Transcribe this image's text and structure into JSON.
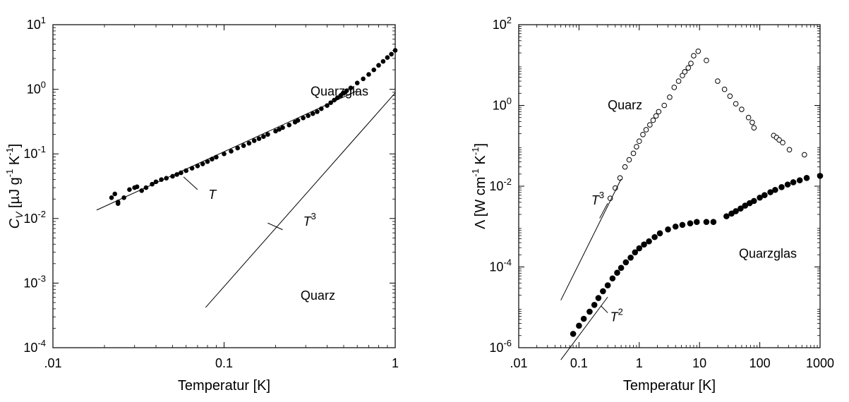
{
  "chart_data": [
    {
      "type": "scatter",
      "xscale": "log",
      "yscale": "log",
      "xlim": [
        0.01,
        1
      ],
      "ylim": [
        0.0001,
        10
      ],
      "xlabel": "Temperatur [K]",
      "ylabel": "C_V [µJ g^-1 K^-1]",
      "xticks": [
        {
          "v": 0.01,
          "t": ".01"
        },
        {
          "v": 0.1,
          "t": "0.1"
        },
        {
          "v": 1,
          "t": "1"
        }
      ],
      "yticks": [
        {
          "v": 0.0001,
          "b": "10",
          "e": "-4"
        },
        {
          "v": 0.001,
          "b": "10",
          "e": "-3"
        },
        {
          "v": 0.01,
          "b": "10",
          "e": "-2"
        },
        {
          "v": 0.1,
          "b": "10",
          "e": "-1"
        },
        {
          "v": 1,
          "b": "10",
          "e": "0"
        },
        {
          "v": 10,
          "b": "10",
          "e": "1"
        }
      ],
      "series": [
        {
          "name": "Quarzglas",
          "marker": "filled",
          "x": [
            0.022,
            0.023,
            0.024,
            0.024,
            0.026,
            0.028,
            0.03,
            0.031,
            0.033,
            0.035,
            0.038,
            0.04,
            0.043,
            0.046,
            0.05,
            0.053,
            0.056,
            0.06,
            0.065,
            0.07,
            0.075,
            0.08,
            0.085,
            0.09,
            0.1,
            0.11,
            0.12,
            0.13,
            0.14,
            0.15,
            0.16,
            0.17,
            0.18,
            0.2,
            0.21,
            0.22,
            0.24,
            0.26,
            0.27,
            0.29,
            0.31,
            0.33,
            0.35,
            0.37,
            0.4,
            0.42,
            0.44,
            0.46,
            0.48,
            0.5,
            0.52,
            0.55,
            0.6,
            0.65,
            0.7,
            0.75,
            0.8,
            0.85,
            0.9,
            0.95,
            1.0
          ],
          "y": [
            0.021,
            0.024,
            0.018,
            0.017,
            0.021,
            0.028,
            0.03,
            0.031,
            0.027,
            0.03,
            0.034,
            0.037,
            0.04,
            0.042,
            0.045,
            0.048,
            0.051,
            0.055,
            0.06,
            0.065,
            0.07,
            0.076,
            0.083,
            0.089,
            0.1,
            0.11,
            0.123,
            0.134,
            0.146,
            0.16,
            0.172,
            0.185,
            0.2,
            0.225,
            0.24,
            0.255,
            0.28,
            0.31,
            0.33,
            0.36,
            0.39,
            0.42,
            0.45,
            0.5,
            0.56,
            0.62,
            0.68,
            0.74,
            0.8,
            0.87,
            0.95,
            1.05,
            1.25,
            1.45,
            1.7,
            2.0,
            2.35,
            2.7,
            3.1,
            3.5,
            4.0
          ]
        },
        {
          "name": "",
          "marker": "line",
          "x": [
            0.018,
            0.6
          ],
          "y": [
            0.0135,
            0.95
          ]
        },
        {
          "name": "",
          "marker": "line",
          "x": [
            0.078,
            1.0
          ],
          "y": [
            0.00042,
            0.88
          ]
        }
      ],
      "annotations": [
        {
          "text": "Quarzglas",
          "x": 0.32,
          "y": 0.8
        },
        {
          "text": "Quarz",
          "x": 0.28,
          "y": 0.00055
        },
        {
          "text": "T",
          "x": 0.081,
          "y": 0.02
        },
        {
          "text": "T",
          "sup": "3",
          "x": 0.29,
          "y": 0.0077
        }
      ],
      "leaders": [
        {
          "x": [
            0.058,
            0.07
          ],
          "y": [
            0.044,
            0.028
          ]
        },
        {
          "x": [
            0.18,
            0.22
          ],
          "y": [
            0.0085,
            0.0067
          ]
        }
      ]
    },
    {
      "type": "scatter",
      "xscale": "log",
      "yscale": "log",
      "xlim": [
        0.01,
        1000
      ],
      "ylim": [
        1e-06,
        100
      ],
      "xlabel": "Temperatur [K]",
      "ylabel": "Λ [W cm^-1 K^-1]",
      "xticks": [
        {
          "v": 0.01,
          "t": ".01"
        },
        {
          "v": 0.1,
          "t": "0.1"
        },
        {
          "v": 1,
          "t": "1"
        },
        {
          "v": 10,
          "t": "10"
        },
        {
          "v": 100,
          "t": "100"
        },
        {
          "v": 1000,
          "t": "1000"
        }
      ],
      "yticks": [
        {
          "v": 1e-06,
          "b": "10",
          "e": "-6"
        },
        {
          "v": 0.0001,
          "b": "10",
          "e": "-4"
        },
        {
          "v": 0.01,
          "b": "10",
          "e": "-2"
        },
        {
          "v": 1,
          "b": "10",
          "e": "0"
        },
        {
          "v": 100,
          "b": "10",
          "e": "2"
        }
      ],
      "series": [
        {
          "name": "Quarz",
          "marker": "open",
          "x": [
            0.33,
            0.4,
            0.48,
            0.58,
            0.68,
            0.8,
            0.9,
            1.0,
            1.15,
            1.3,
            1.5,
            1.7,
            1.9,
            2.1,
            2.6,
            3.2,
            3.8,
            4.5,
            5.2,
            5.7,
            6.5,
            7.2,
            8.0,
            9.5,
            13,
            20,
            26,
            32,
            40,
            50,
            65,
            75,
            80,
            170,
            190,
            210,
            240,
            310,
            550
          ],
          "y": [
            0.005,
            0.009,
            0.016,
            0.03,
            0.045,
            0.065,
            0.095,
            0.13,
            0.19,
            0.25,
            0.33,
            0.43,
            0.55,
            0.7,
            1.0,
            1.6,
            2.8,
            4.0,
            5.5,
            6.8,
            8.5,
            11,
            17,
            22,
            13,
            4.0,
            2.5,
            1.7,
            1.1,
            0.8,
            0.5,
            0.38,
            0.28,
            0.18,
            0.16,
            0.14,
            0.12,
            0.08,
            0.06
          ]
        },
        {
          "name": "Quarzglas",
          "marker": "filled",
          "x": [
            0.08,
            0.1,
            0.12,
            0.15,
            0.18,
            0.21,
            0.25,
            0.3,
            0.36,
            0.43,
            0.5,
            0.6,
            0.72,
            0.85,
            1.0,
            1.2,
            1.45,
            1.8,
            2.2,
            3.0,
            4.0,
            5.2,
            7.0,
            9.0,
            13,
            17,
            28,
            34,
            40,
            48,
            57,
            68,
            80,
            100,
            120,
            150,
            180,
            230,
            290,
            360,
            460,
            600,
            1000
          ],
          "y": [
            2.2e-06,
            3.5e-06,
            5.2e-06,
            7.8e-06,
            1.15e-05,
            1.7e-05,
            2.5e-05,
            3.5e-05,
            5.2e-05,
            7.2e-05,
            9.5e-05,
            0.00013,
            0.00017,
            0.00023,
            0.00029,
            0.00036,
            0.00043,
            0.00055,
            0.00068,
            0.00085,
            0.001,
            0.0011,
            0.0012,
            0.0013,
            0.0013,
            0.0013,
            0.0018,
            0.0021,
            0.0024,
            0.0028,
            0.0033,
            0.0038,
            0.0043,
            0.0052,
            0.006,
            0.0071,
            0.0081,
            0.0095,
            0.011,
            0.0125,
            0.014,
            0.016,
            0.018
          ]
        },
        {
          "name": "",
          "marker": "line",
          "x": [
            0.05,
            0.5
          ],
          "y": [
            1.5e-05,
            0.015
          ]
        },
        {
          "name": "",
          "marker": "line",
          "x": [
            0.05,
            0.3
          ],
          "y": [
            5e-07,
            1.8e-05
          ]
        }
      ],
      "annotations": [
        {
          "text": "Quarz",
          "x": 0.3,
          "y": 0.8
        },
        {
          "text": "Quarzglas",
          "x": 45,
          "y": 0.00017
        },
        {
          "text": "T",
          "sup": "3",
          "x": 0.16,
          "y": 0.0035
        },
        {
          "text": "T",
          "sup": "2",
          "x": 0.33,
          "y": 4.5e-06
        }
      ],
      "leaders": [
        {
          "x": [
            0.22,
            0.3
          ],
          "y": [
            0.0016,
            0.0038
          ]
        },
        {
          "x": [
            0.23,
            0.3
          ],
          "y": [
            1.1e-05,
            7.3e-06
          ]
        }
      ]
    }
  ]
}
